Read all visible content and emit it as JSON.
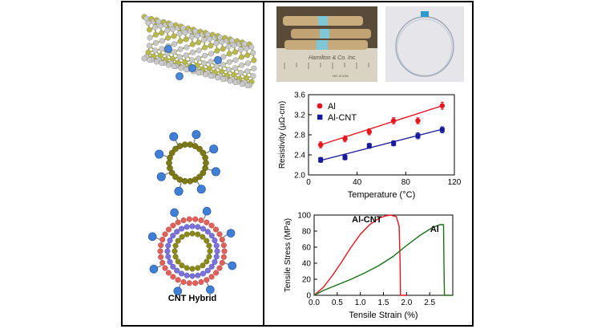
{
  "left_panel": {
    "caption": "CNT Hybrid"
  },
  "photos": {
    "left_label_fragment": "Hamilton & Co. Inc.",
    "left_label_subfragment": "NO. 8 USA"
  },
  "chart_data": [
    {
      "type": "scatter",
      "title": "",
      "xlabel": "Temperature (°C)",
      "ylabel": "Resistivity (μΩ-cm)",
      "xlim": [
        0,
        120
      ],
      "ylim": [
        2.0,
        3.6
      ],
      "xticks": [
        "0",
        "40",
        "80",
        "120"
      ],
      "yticks": [
        "2.0",
        "2.4",
        "2.8",
        "3.2",
        "3.6"
      ],
      "legend_position": "top-left",
      "series": [
        {
          "name": "Al",
          "color": "#e8141e",
          "marker": "circle",
          "x": [
            10,
            30,
            50,
            70,
            90,
            110
          ],
          "y": [
            2.6,
            2.72,
            2.86,
            3.08,
            3.08,
            3.38
          ],
          "err": [
            0.06,
            0.06,
            0.06,
            0.06,
            0.06,
            0.07
          ],
          "fit": [
            [
              10,
              2.6
            ],
            [
              110,
              3.38
            ]
          ]
        },
        {
          "name": "Al-CNT",
          "color": "#1a1a9c",
          "marker": "square",
          "x": [
            10,
            30,
            50,
            70,
            90,
            110
          ],
          "y": [
            2.3,
            2.35,
            2.58,
            2.63,
            2.78,
            2.9
          ],
          "err": [
            0.05,
            0.05,
            0.05,
            0.05,
            0.06,
            0.06
          ],
          "fit": [
            [
              10,
              2.29
            ],
            [
              110,
              2.91
            ]
          ]
        }
      ]
    },
    {
      "type": "line",
      "title": "",
      "xlabel": "Tensile Strain (%)",
      "ylabel": "Tensile Stress (MPa)",
      "xlim": [
        0,
        3.0
      ],
      "ylim": [
        0,
        100
      ],
      "xticks": [
        "0.0",
        "0.5",
        "1.0",
        "1.5",
        "2.0",
        "2.5"
      ],
      "yticks": [
        "0",
        "20",
        "40",
        "60",
        "80",
        "100"
      ],
      "series": [
        {
          "name": "Al-CNT",
          "color": "#e8141e",
          "points": [
            [
              0,
              0
            ],
            [
              0.2,
              10
            ],
            [
              0.4,
              25
            ],
            [
              0.6,
              42
            ],
            [
              0.8,
              60
            ],
            [
              1.0,
              76
            ],
            [
              1.2,
              88
            ],
            [
              1.4,
              96
            ],
            [
              1.55,
              99
            ],
            [
              1.65,
              100
            ],
            [
              1.78,
              98
            ],
            [
              1.84,
              86
            ],
            [
              1.86,
              40
            ],
            [
              1.87,
              0
            ],
            [
              2.0,
              0
            ]
          ]
        },
        {
          "name": "Al",
          "color": "#197019",
          "points": [
            [
              0,
              0
            ],
            [
              0.2,
              6
            ],
            [
              0.5,
              13
            ],
            [
              0.8,
              20
            ],
            [
              1.1,
              28
            ],
            [
              1.4,
              37
            ],
            [
              1.7,
              48
            ],
            [
              2.0,
              62
            ],
            [
              2.3,
              75
            ],
            [
              2.55,
              84
            ],
            [
              2.72,
              88
            ],
            [
              2.8,
              88
            ],
            [
              2.81,
              40
            ],
            [
              2.82,
              0
            ],
            [
              2.95,
              0
            ]
          ]
        }
      ]
    }
  ]
}
